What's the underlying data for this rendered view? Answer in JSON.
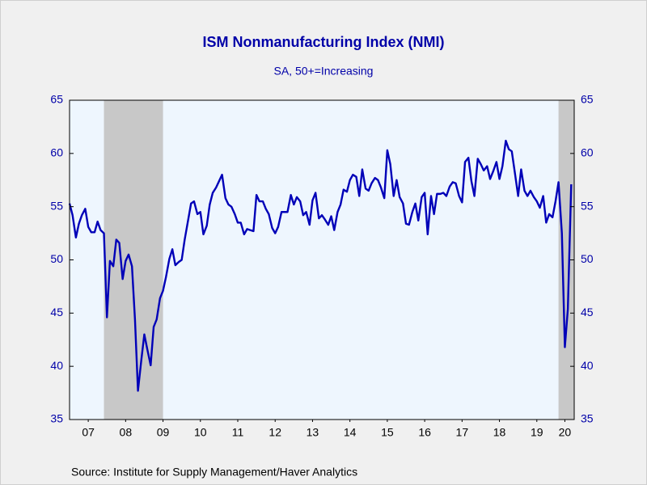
{
  "chart_data": {
    "type": "line",
    "title": "ISM Nonmanufacturing Index (NMI)",
    "subtitle": "SA, 50+=Increasing",
    "source": "Source:  Institute for Supply Management/Haver Analytics",
    "xlim": [
      2007,
      2020.5
    ],
    "ylim": [
      35,
      65
    ],
    "yticks": [
      35,
      40,
      45,
      50,
      55,
      60,
      65
    ],
    "y2lim": [
      35,
      65
    ],
    "y2ticks": [
      35,
      40,
      45,
      50,
      55,
      60,
      65
    ],
    "xticks": [
      {
        "value": 2007.5,
        "label": "07"
      },
      {
        "value": 2008.5,
        "label": "08"
      },
      {
        "value": 2009.5,
        "label": "09"
      },
      {
        "value": 2010.5,
        "label": "10"
      },
      {
        "value": 2011.5,
        "label": "11"
      },
      {
        "value": 2012.5,
        "label": "12"
      },
      {
        "value": 2013.5,
        "label": "13"
      },
      {
        "value": 2014.5,
        "label": "14"
      },
      {
        "value": 2015.5,
        "label": "15"
      },
      {
        "value": 2016.5,
        "label": "16"
      },
      {
        "value": 2017.5,
        "label": "17"
      },
      {
        "value": 2018.5,
        "label": "18"
      },
      {
        "value": 2019.5,
        "label": "19"
      },
      {
        "value": 2020.25,
        "label": "20"
      }
    ],
    "shading": [
      [
        2007.92,
        2009.5
      ],
      [
        2020.08,
        2020.5
      ]
    ],
    "shading_color": "#c8c8c8",
    "grid": false,
    "x": [
      2007.0,
      2007.08,
      2007.17,
      2007.25,
      2007.33,
      2007.42,
      2007.5,
      2007.58,
      2007.67,
      2007.75,
      2007.83,
      2007.92,
      2008.0,
      2008.08,
      2008.17,
      2008.25,
      2008.33,
      2008.42,
      2008.5,
      2008.58,
      2008.67,
      2008.75,
      2008.83,
      2008.92,
      2009.0,
      2009.08,
      2009.17,
      2009.25,
      2009.33,
      2009.42,
      2009.5,
      2009.58,
      2009.67,
      2009.75,
      2009.83,
      2009.92,
      2010.0,
      2010.08,
      2010.17,
      2010.25,
      2010.33,
      2010.42,
      2010.5,
      2010.58,
      2010.67,
      2010.75,
      2010.83,
      2010.92,
      2011.0,
      2011.08,
      2011.17,
      2011.25,
      2011.33,
      2011.42,
      2011.5,
      2011.58,
      2011.67,
      2011.75,
      2011.83,
      2011.92,
      2012.0,
      2012.08,
      2012.17,
      2012.25,
      2012.33,
      2012.42,
      2012.5,
      2012.58,
      2012.67,
      2012.75,
      2012.83,
      2012.92,
      2013.0,
      2013.08,
      2013.17,
      2013.25,
      2013.33,
      2013.42,
      2013.5,
      2013.58,
      2013.67,
      2013.75,
      2013.83,
      2013.92,
      2014.0,
      2014.08,
      2014.17,
      2014.25,
      2014.33,
      2014.42,
      2014.5,
      2014.58,
      2014.67,
      2014.75,
      2014.83,
      2014.92,
      2015.0,
      2015.08,
      2015.17,
      2015.25,
      2015.33,
      2015.42,
      2015.5,
      2015.58,
      2015.67,
      2015.75,
      2015.83,
      2015.92,
      2016.0,
      2016.08,
      2016.17,
      2016.25,
      2016.33,
      2016.42,
      2016.5,
      2016.58,
      2016.67,
      2016.75,
      2016.83,
      2016.92,
      2017.0,
      2017.08,
      2017.17,
      2017.25,
      2017.33,
      2017.42,
      2017.5,
      2017.58,
      2017.67,
      2017.75,
      2017.83,
      2017.92,
      2018.0,
      2018.08,
      2018.17,
      2018.25,
      2018.33,
      2018.42,
      2018.5,
      2018.58,
      2018.67,
      2018.75,
      2018.83,
      2018.92,
      2019.0,
      2019.08,
      2019.17,
      2019.25,
      2019.33,
      2019.42,
      2019.5,
      2019.58,
      2019.67,
      2019.75,
      2019.83,
      2019.92,
      2020.0,
      2020.08,
      2020.17,
      2020.25,
      2020.33,
      2020.42
    ],
    "series": [
      {
        "color": "#0000b8",
        "values": [
          55.3,
          54.2,
          52.1,
          53.4,
          54.2,
          54.8,
          53.1,
          52.6,
          52.6,
          53.6,
          52.8,
          52.5,
          44.6,
          49.9,
          49.4,
          51.9,
          51.6,
          48.2,
          49.9,
          50.5,
          49.4,
          44.4,
          37.7,
          40.6,
          43.0,
          41.6,
          40.1,
          43.7,
          44.4,
          46.4,
          47.1,
          48.4,
          50.1,
          51.0,
          49.5,
          49.8,
          50.0,
          51.9,
          53.7,
          55.3,
          55.5,
          54.3,
          54.5,
          52.4,
          53.2,
          55.2,
          56.3,
          56.8,
          57.4,
          58.0,
          55.8,
          55.2,
          55.0,
          54.3,
          53.5,
          53.5,
          52.4,
          52.9,
          52.8,
          52.7,
          56.1,
          55.5,
          55.5,
          54.8,
          54.3,
          53.0,
          52.5,
          53.1,
          54.5,
          54.5,
          54.5,
          56.1,
          55.2,
          55.9,
          55.5,
          54.2,
          54.5,
          53.3,
          55.6,
          56.3,
          53.9,
          54.2,
          53.8,
          53.3,
          54.1,
          52.8,
          54.5,
          55.2,
          56.6,
          56.4,
          57.5,
          58.0,
          57.8,
          56.0,
          58.5,
          56.7,
          56.5,
          57.2,
          57.7,
          57.5,
          56.8,
          55.8,
          60.3,
          59.0,
          56.0,
          57.5,
          55.9,
          55.3,
          53.4,
          53.3,
          54.5,
          55.3,
          53.7,
          55.9,
          56.3,
          52.4,
          56.0,
          54.3,
          56.2,
          56.2,
          56.3,
          56.0,
          56.9,
          57.3,
          57.2,
          56.0,
          55.4,
          59.2,
          59.6,
          57.4,
          56.0,
          59.5,
          59.0,
          58.4,
          58.8,
          57.6,
          58.3,
          59.2,
          57.6,
          58.8,
          61.2,
          60.4,
          60.2,
          58.0,
          56.0,
          58.5,
          56.5,
          56.0,
          56.5,
          55.9,
          55.5,
          54.9,
          56.0,
          53.5,
          54.3,
          54.0,
          55.5,
          57.3,
          52.5,
          41.8,
          45.4,
          57.1
        ]
      }
    ]
  }
}
